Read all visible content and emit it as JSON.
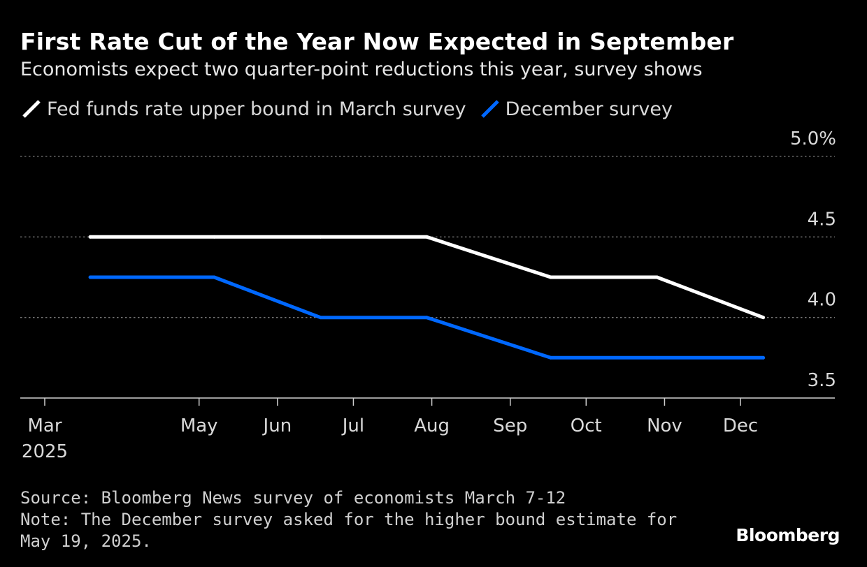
{
  "header": {
    "title": "First Rate Cut of the Year Now Expected in September",
    "subtitle": "Economists expect two quarter-point reductions this year, survey shows"
  },
  "legend": [
    {
      "label": "Fed funds rate upper bound in March survey",
      "color": "#ffffff"
    },
    {
      "label": "December survey",
      "color": "#0068ff"
    }
  ],
  "chart_data": {
    "type": "line",
    "x_ticks": [
      "Mar\n2025",
      "May",
      "Jun",
      "Jul",
      "Aug",
      "Sep",
      "Oct",
      "Nov",
      "Dec"
    ],
    "x_tick_dates": [
      "2025-03-01",
      "2025-05-01",
      "2025-06-01",
      "2025-07-01",
      "2025-08-01",
      "2025-09-01",
      "2025-10-01",
      "2025-11-01",
      "2025-12-01"
    ],
    "y_ticks": [
      "3.5",
      "4.0",
      "4.5",
      "5.0%"
    ],
    "y_tick_values": [
      3.5,
      4.0,
      4.5,
      5.0
    ],
    "ylim": [
      3.5,
      5.0
    ],
    "grid": "dotted horizontal",
    "legend_position": "top-left",
    "series": [
      {
        "name": "Fed funds rate upper bound in March survey",
        "color": "#ffffff",
        "points": [
          {
            "x": "2025-03-19",
            "y": 4.5
          },
          {
            "x": "2025-05-07",
            "y": 4.5
          },
          {
            "x": "2025-06-18",
            "y": 4.5
          },
          {
            "x": "2025-07-30",
            "y": 4.5
          },
          {
            "x": "2025-09-17",
            "y": 4.25
          },
          {
            "x": "2025-10-29",
            "y": 4.25
          },
          {
            "x": "2025-12-10",
            "y": 4.0
          }
        ]
      },
      {
        "name": "December survey",
        "color": "#0068ff",
        "points": [
          {
            "x": "2025-03-19",
            "y": 4.25
          },
          {
            "x": "2025-05-07",
            "y": 4.25
          },
          {
            "x": "2025-06-18",
            "y": 4.0
          },
          {
            "x": "2025-07-30",
            "y": 4.0
          },
          {
            "x": "2025-09-17",
            "y": 3.75
          },
          {
            "x": "2025-10-29",
            "y": 3.75
          },
          {
            "x": "2025-12-10",
            "y": 3.75
          }
        ]
      }
    ]
  },
  "footer": {
    "source": "Source: Bloomberg News survey of economists March 7-12",
    "note": "Note: The December survey asked for the higher bound estimate for May 19, 2025."
  },
  "brand": "Bloomberg"
}
